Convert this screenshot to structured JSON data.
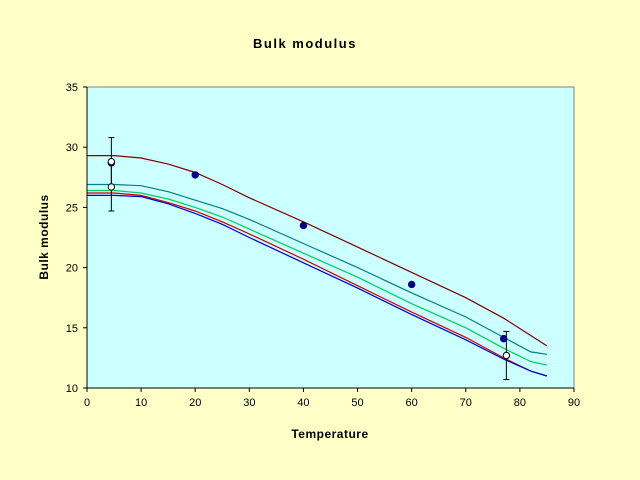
{
  "colors": {
    "page_background": "#FFFFC8",
    "plot_background": "#CCFFFF",
    "axis": "#000000",
    "marker_fill": "#000080",
    "marker_open_fill": "#FFFFFF"
  },
  "chart_data": {
    "type": "line",
    "title": "Bulk modulus",
    "xlabel": "Temperature",
    "ylabel": "Bulk modulus",
    "xlim": [
      0,
      90
    ],
    "ylim": [
      10,
      35
    ],
    "x_ticks": [
      0,
      10,
      20,
      30,
      40,
      50,
      60,
      70,
      80,
      90
    ],
    "y_ticks": [
      10,
      15,
      20,
      25,
      30,
      35
    ],
    "grid": false,
    "legend": "none",
    "series": [
      {
        "color": "#800000",
        "points": [
          [
            0,
            29.3
          ],
          [
            5,
            29.3
          ],
          [
            10,
            29.1
          ],
          [
            15,
            28.6
          ],
          [
            20,
            27.9
          ],
          [
            25,
            26.9
          ],
          [
            30,
            25.8
          ],
          [
            40,
            23.8
          ],
          [
            50,
            21.7
          ],
          [
            60,
            19.6
          ],
          [
            70,
            17.5
          ],
          [
            77,
            15.8
          ],
          [
            85,
            13.5
          ]
        ]
      },
      {
        "color": "#008080",
        "points": [
          [
            0,
            26.9
          ],
          [
            5,
            26.9
          ],
          [
            10,
            26.8
          ],
          [
            15,
            26.3
          ],
          [
            20,
            25.6
          ],
          [
            25,
            24.9
          ],
          [
            30,
            24.0
          ],
          [
            40,
            22.0
          ],
          [
            50,
            20.0
          ],
          [
            60,
            17.9
          ],
          [
            70,
            15.9
          ],
          [
            77,
            14.2
          ],
          [
            82,
            13.0
          ],
          [
            85,
            12.8
          ]
        ]
      },
      {
        "color": "#00CC66",
        "points": [
          [
            0,
            26.4
          ],
          [
            5,
            26.4
          ],
          [
            10,
            26.2
          ],
          [
            15,
            25.7
          ],
          [
            20,
            25.0
          ],
          [
            25,
            24.2
          ],
          [
            30,
            23.2
          ],
          [
            40,
            21.2
          ],
          [
            50,
            19.2
          ],
          [
            60,
            17.0
          ],
          [
            70,
            15.0
          ],
          [
            77,
            13.3
          ],
          [
            82,
            12.2
          ],
          [
            85,
            11.9
          ]
        ]
      },
      {
        "color": "#CC0000",
        "points": [
          [
            0,
            26.2
          ],
          [
            5,
            26.2
          ],
          [
            10,
            26.0
          ],
          [
            15,
            25.4
          ],
          [
            20,
            24.7
          ],
          [
            25,
            23.8
          ],
          [
            30,
            22.8
          ],
          [
            40,
            20.7
          ],
          [
            50,
            18.5
          ],
          [
            60,
            16.3
          ],
          [
            70,
            14.2
          ],
          [
            77,
            12.5
          ],
          [
            82,
            11.4
          ],
          [
            85,
            11.0
          ]
        ]
      },
      {
        "color": "#0000CC",
        "points": [
          [
            0,
            26.0
          ],
          [
            5,
            26.0
          ],
          [
            10,
            25.9
          ],
          [
            15,
            25.3
          ],
          [
            20,
            24.5
          ],
          [
            25,
            23.6
          ],
          [
            30,
            22.5
          ],
          [
            40,
            20.4
          ],
          [
            50,
            18.3
          ],
          [
            60,
            16.1
          ],
          [
            70,
            14.0
          ],
          [
            77,
            12.4
          ],
          [
            82,
            11.4
          ],
          [
            85,
            11.0
          ]
        ]
      }
    ],
    "markers_filled": [
      {
        "x": 4.5,
        "y": 28.7
      },
      {
        "x": 20,
        "y": 27.7
      },
      {
        "x": 40,
        "y": 23.5
      },
      {
        "x": 60,
        "y": 18.6
      },
      {
        "x": 77,
        "y": 14.1
      }
    ],
    "markers_open": [
      {
        "x": 4.5,
        "y": 28.8,
        "error": 2.0
      },
      {
        "x": 4.5,
        "y": 26.7,
        "error": 2.0
      },
      {
        "x": 77.5,
        "y": 12.7,
        "error": 2.0
      }
    ]
  }
}
